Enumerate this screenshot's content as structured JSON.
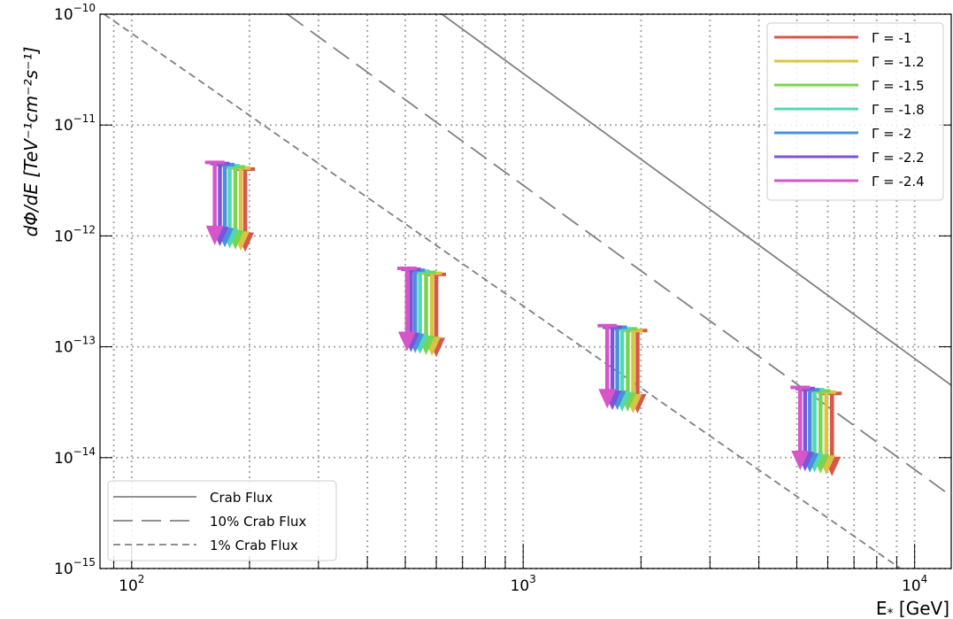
{
  "chart_data": {
    "type": "scatter",
    "title": "",
    "xlabel": "E* [GeV]",
    "xlabel_main": "E",
    "xlabel_sub": "*",
    "xlabel_rest": " [GeV]",
    "ylabel": "dΦ/dE  [TeV⁻¹cm⁻²s⁻¹]",
    "xscale": "log",
    "yscale": "log",
    "xlim": [
      83,
      12400
    ],
    "ylim": [
      1e-15,
      1e-10
    ],
    "grid": true,
    "x_tick_labels": [
      {
        "base": "10",
        "exp": "2",
        "value": 100
      },
      {
        "base": "10",
        "exp": "3",
        "value": 1000
      },
      {
        "base": "10",
        "exp": "4",
        "value": 10000
      }
    ],
    "y_tick_labels": [
      {
        "base": "10",
        "exp": "−10",
        "value": 1e-10
      },
      {
        "base": "10",
        "exp": "−11",
        "value": 1e-11
      },
      {
        "base": "10",
        "exp": "−12",
        "value": 1e-12
      },
      {
        "base": "10",
        "exp": "−13",
        "value": 1e-13
      },
      {
        "base": "10",
        "exp": "−14",
        "value": 1e-14
      },
      {
        "base": "10",
        "exp": "−15",
        "value": 1e-15
      }
    ],
    "reference_lines": [
      {
        "name": "Crab Flux",
        "style": "solid",
        "points": [
          [
            620,
            1e-10
          ],
          [
            12400,
            4.5e-14
          ]
        ]
      },
      {
        "name": "10% Crab Flux",
        "style": "long-dash",
        "points": [
          [
            250,
            1e-10
          ],
          [
            12400,
            4.5e-15
          ]
        ]
      },
      {
        "name": "1% Crab Flux",
        "style": "short-dash",
        "points": [
          [
            85,
            1e-10
          ],
          [
            9200,
            1e-15
          ]
        ]
      }
    ],
    "upper_limits": {
      "series": [
        {
          "name": "Γ = -1",
          "color": "#d9564a",
          "x": [
            195,
            600,
            1960,
            6150
          ],
          "y": [
            4e-12,
            4.5e-13,
            1.4e-13,
            3.8e-14
          ]
        },
        {
          "name": "Γ = -1.2",
          "color": "#d9c444",
          "x": [
            190,
            585,
            1910,
            5950
          ],
          "y": [
            4.1e-12,
            4.6e-13,
            1.4e-13,
            3.9e-14
          ]
        },
        {
          "name": "Γ = -1.5",
          "color": "#7ad54e",
          "x": [
            184,
            565,
            1850,
            5750
          ],
          "y": [
            4.2e-12,
            4.7e-13,
            1.45e-13,
            4e-14
          ]
        },
        {
          "name": "Γ = -1.8",
          "color": "#4fd8b4",
          "x": [
            178,
            545,
            1790,
            5550
          ],
          "y": [
            4.3e-12,
            4.8e-13,
            1.45e-13,
            4.1e-14
          ]
        },
        {
          "name": "Γ = -2",
          "color": "#4a90e0",
          "x": [
            173,
            530,
            1740,
            5400
          ],
          "y": [
            4.4e-12,
            4.9e-13,
            1.5e-13,
            4.1e-14
          ]
        },
        {
          "name": "Γ = -2.2",
          "color": "#7b55d8",
          "x": [
            168,
            517,
            1690,
            5250
          ],
          "y": [
            4.5e-12,
            5e-13,
            1.5e-13,
            4.2e-14
          ]
        },
        {
          "name": "Γ = -2.4",
          "color": "#d655c8",
          "x": [
            163,
            505,
            1640,
            5100
          ],
          "y": [
            4.6e-12,
            5.1e-13,
            1.55e-13,
            4.3e-14
          ]
        }
      ]
    },
    "legend_gamma": {
      "placement": "top-right"
    },
    "legend_crab": {
      "placement": "bottom-left"
    }
  }
}
